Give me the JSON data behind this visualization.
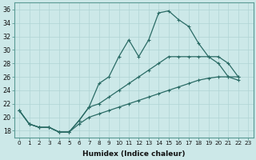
{
  "xlabel": "Humidex (Indice chaleur)",
  "bg_color": "#cce8e8",
  "grid_color": "#b0d4d4",
  "line_color": "#2a6b65",
  "xlim": [
    -0.5,
    23.5
  ],
  "ylim": [
    17,
    37
  ],
  "xticks": [
    0,
    1,
    2,
    3,
    4,
    5,
    6,
    7,
    8,
    9,
    10,
    11,
    12,
    13,
    14,
    15,
    16,
    17,
    18,
    19,
    20,
    21,
    22,
    23
  ],
  "yticks": [
    18,
    20,
    22,
    24,
    26,
    28,
    30,
    32,
    34,
    36
  ],
  "series_top": [
    21.0,
    19.0,
    18.5,
    18.5,
    17.8,
    17.8,
    19.5,
    21.5,
    25.0,
    26.0,
    29.0,
    31.5,
    29.0,
    31.5,
    35.5,
    35.8,
    34.5,
    33.5,
    31.0,
    29.0,
    28.0,
    26.0,
    25.5
  ],
  "series_mid": [
    21.0,
    19.0,
    18.5,
    18.5,
    17.8,
    17.8,
    19.5,
    21.5,
    22.0,
    23.0,
    24.0,
    25.0,
    26.0,
    27.0,
    28.0,
    29.0,
    29.0,
    29.0,
    29.0,
    29.0,
    29.0,
    28.0,
    26.0
  ],
  "series_bot": [
    21.0,
    19.0,
    18.5,
    18.5,
    17.8,
    17.8,
    19.0,
    20.0,
    20.5,
    21.0,
    21.5,
    22.0,
    22.5,
    23.0,
    23.5,
    24.0,
    24.5,
    25.0,
    25.5,
    25.8,
    26.0,
    26.0,
    26.0
  ],
  "x_values": [
    0,
    1,
    2,
    3,
    4,
    5,
    6,
    7,
    8,
    9,
    10,
    11,
    12,
    13,
    14,
    15,
    16,
    17,
    18,
    19,
    20,
    21,
    22
  ]
}
